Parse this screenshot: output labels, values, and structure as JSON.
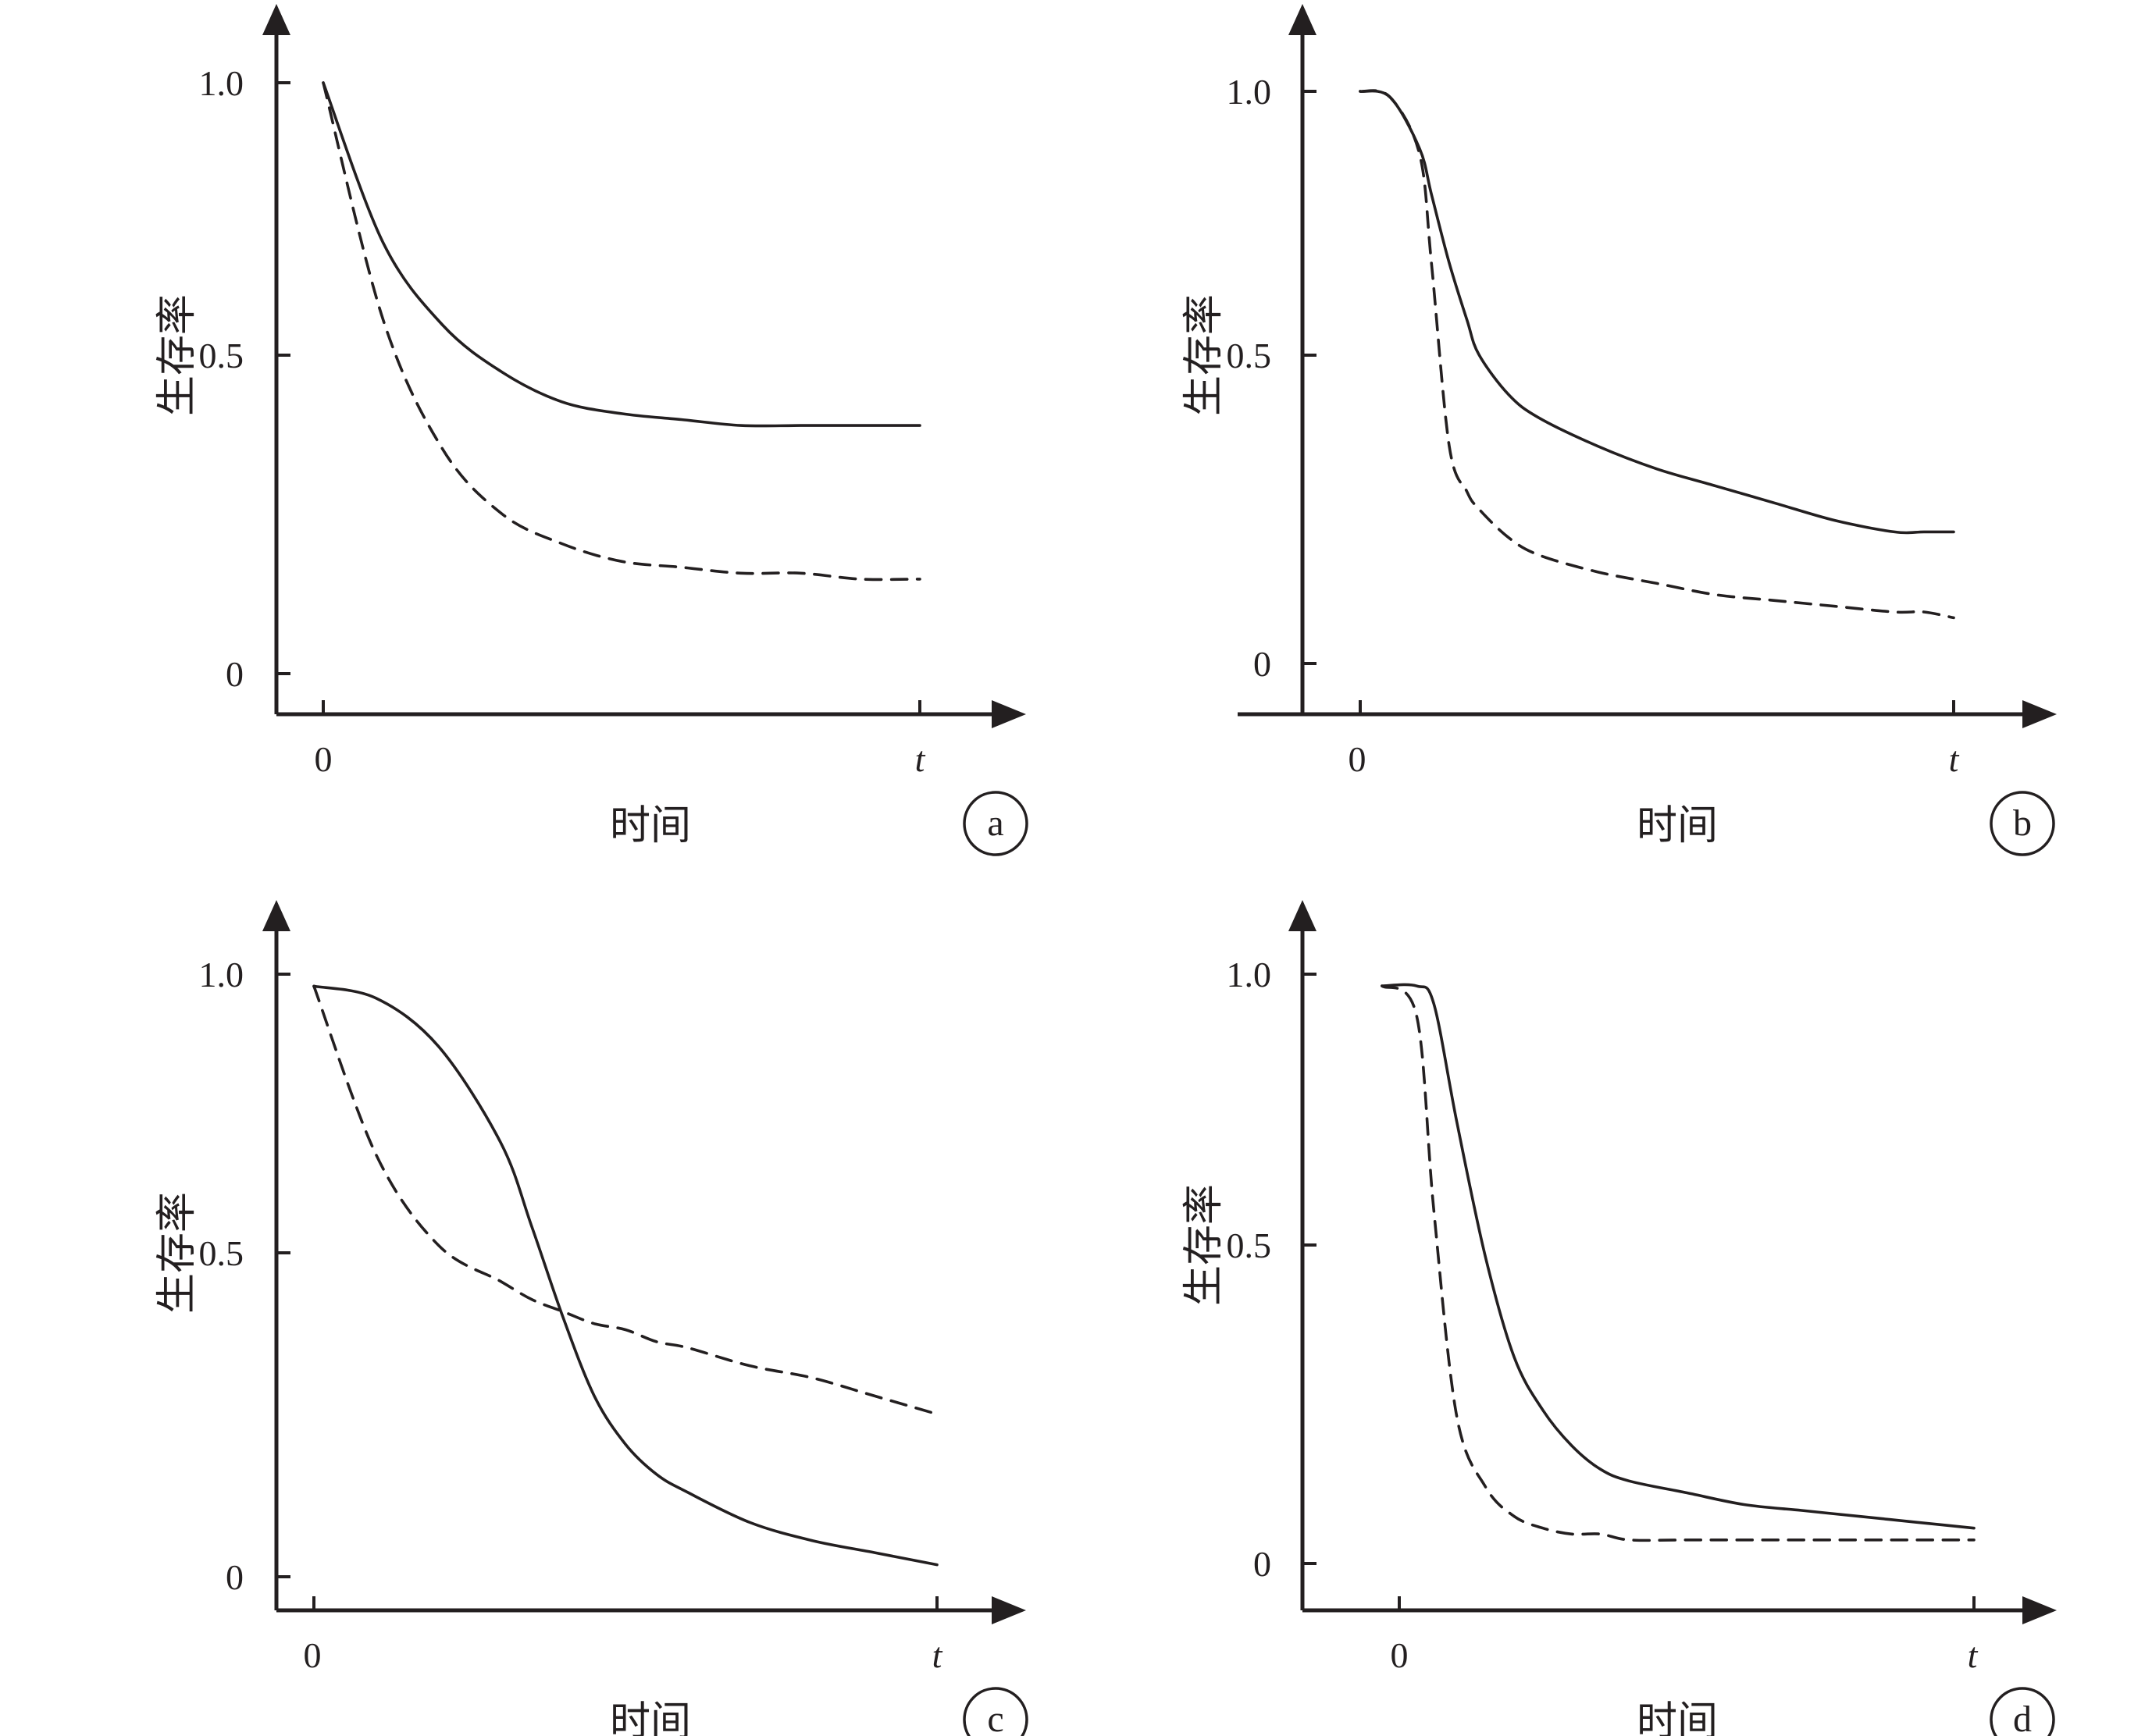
{
  "chart_data": [
    {
      "type": "line",
      "panel_label": "a",
      "xlabel": "时间",
      "ylabel": "生存率",
      "x_ticks": [
        "0",
        "t"
      ],
      "y_ticks": [
        "0",
        "0.5",
        "1.0"
      ],
      "x": [
        0,
        0.1,
        0.2,
        0.3,
        0.4,
        0.5,
        0.6,
        0.7,
        0.8,
        0.9,
        1.0
      ],
      "series": [
        {
          "style": "solid",
          "values": [
            1.0,
            0.73,
            0.59,
            0.51,
            0.46,
            0.44,
            0.43,
            0.42,
            0.42,
            0.42,
            0.42
          ]
        },
        {
          "style": "dashed",
          "values": [
            1.0,
            0.6,
            0.38,
            0.27,
            0.22,
            0.19,
            0.18,
            0.17,
            0.17,
            0.16,
            0.16
          ]
        }
      ]
    },
    {
      "type": "line",
      "panel_label": "b",
      "xlabel": "时间",
      "ylabel": "生存率",
      "x_ticks": [
        "0",
        "t"
      ],
      "y_ticks": [
        "0",
        "0.5",
        "1.0"
      ],
      "x": [
        0,
        0.05,
        0.1,
        0.12,
        0.15,
        0.18,
        0.2,
        0.25,
        0.3,
        0.4,
        0.5,
        0.6,
        0.7,
        0.8,
        0.9,
        0.95,
        1.0
      ],
      "series": [
        {
          "style": "solid",
          "values": [
            1.0,
            0.99,
            0.9,
            0.82,
            0.7,
            0.6,
            0.54,
            0.47,
            0.43,
            0.38,
            0.34,
            0.31,
            0.28,
            0.25,
            0.23,
            0.23,
            0.23
          ]
        },
        {
          "style": "dashed",
          "values": [
            1.0,
            0.99,
            0.89,
            0.7,
            0.38,
            0.3,
            0.27,
            0.22,
            0.19,
            0.16,
            0.14,
            0.12,
            0.11,
            0.1,
            0.09,
            0.09,
            0.08
          ]
        }
      ]
    },
    {
      "type": "line",
      "panel_label": "c",
      "xlabel": "时间",
      "ylabel": "生存率",
      "x_ticks": [
        "0",
        "t"
      ],
      "y_ticks": [
        "0",
        "0.5",
        "1.0"
      ],
      "x": [
        0,
        0.1,
        0.2,
        0.3,
        0.35,
        0.4,
        0.45,
        0.5,
        0.55,
        0.6,
        0.7,
        0.8,
        0.9,
        1.0
      ],
      "series": [
        {
          "style": "solid",
          "values": [
            0.98,
            0.96,
            0.88,
            0.72,
            0.58,
            0.43,
            0.3,
            0.22,
            0.17,
            0.14,
            0.09,
            0.06,
            0.04,
            0.02
          ]
        },
        {
          "style": "dashed",
          "values": [
            0.98,
            0.7,
            0.55,
            0.49,
            0.46,
            0.44,
            0.42,
            0.41,
            0.39,
            0.38,
            0.35,
            0.33,
            0.3,
            0.27
          ]
        }
      ]
    },
    {
      "type": "line",
      "panel_label": "d",
      "xlabel": "时间",
      "ylabel": "生存率",
      "x_ticks": [
        "0",
        "t"
      ],
      "y_ticks": [
        "0",
        "0.5",
        "1.0"
      ],
      "x": [
        -0.03,
        0.03,
        0.06,
        0.1,
        0.15,
        0.2,
        0.25,
        0.3,
        0.35,
        0.4,
        0.5,
        0.6,
        0.7,
        0.8,
        0.9,
        1.0
      ],
      "series": [
        {
          "style": "solid",
          "values": [
            0.98,
            0.98,
            0.95,
            0.75,
            0.52,
            0.35,
            0.26,
            0.2,
            0.16,
            0.14,
            0.12,
            0.1,
            0.09,
            0.08,
            0.07,
            0.06
          ]
        },
        {
          "style": "dashed",
          "values": [
            0.98,
            0.93,
            0.6,
            0.25,
            0.13,
            0.08,
            0.06,
            0.05,
            0.05,
            0.04,
            0.04,
            0.04,
            0.04,
            0.04,
            0.04,
            0.04
          ]
        }
      ]
    }
  ]
}
